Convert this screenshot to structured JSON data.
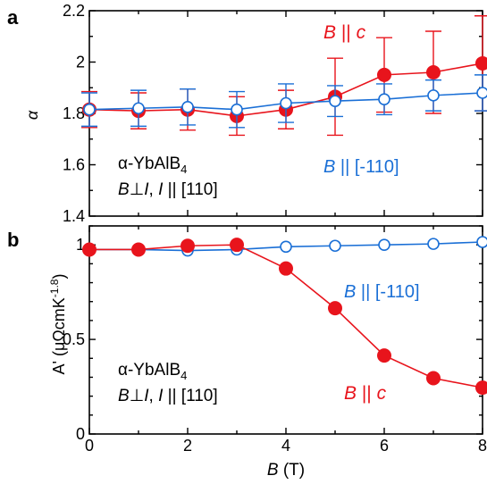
{
  "chart_data": [
    {
      "panel": "a",
      "type": "line",
      "ylabel": "α",
      "xlim": [
        0,
        8
      ],
      "ylim": [
        1.4,
        2.2
      ],
      "yticks": [
        "1.4",
        "1.6",
        "1.8",
        "2",
        "2.2"
      ],
      "x": [
        0,
        1,
        2,
        3,
        4,
        5,
        6,
        7,
        8
      ],
      "series": [
        {
          "name": "B || c",
          "label_parts": [
            "B",
            " || ",
            "c"
          ],
          "color": "#e8141c",
          "marker": "filled-circle",
          "values": [
            1.815,
            1.81,
            1.815,
            1.79,
            1.815,
            1.865,
            1.95,
            1.96,
            1.995
          ],
          "errors": [
            0.07,
            0.07,
            0.08,
            0.075,
            0.075,
            0.15,
            0.145,
            0.16,
            0.185
          ]
        },
        {
          "name": "B || [-110]",
          "label_parts": [
            "B",
            " || [-110]"
          ],
          "color": "#1a6fd6",
          "marker": "open-circle",
          "values": [
            1.815,
            1.82,
            1.825,
            1.815,
            1.84,
            1.848,
            1.855,
            1.87,
            1.88
          ],
          "errors": [
            0.065,
            0.07,
            0.07,
            0.07,
            0.075,
            0.06,
            0.06,
            0.06,
            0.07
          ]
        }
      ],
      "annotation": {
        "line1_main": "α-YbAlB",
        "line1_sub": "4",
        "line2_parts": [
          "B",
          "⊥",
          "I",
          ", ",
          "I",
          " || [110]"
        ]
      }
    },
    {
      "panel": "b",
      "type": "line",
      "ylabel_main": "A' (μΩcmK",
      "ylabel_sup": "-1.8",
      "ylabel_end": ")",
      "xlabel_parts": [
        "B",
        " (T)"
      ],
      "xlim": [
        0,
        8
      ],
      "ylim": [
        0,
        1.1
      ],
      "xticks": [
        "0",
        "2",
        "4",
        "6",
        "8"
      ],
      "yticks": [
        "0",
        "0.5",
        "1"
      ],
      "x": [
        0,
        1,
        2,
        3,
        4,
        5,
        6,
        7,
        8
      ],
      "series": [
        {
          "name": "B || [-110]",
          "label_parts": [
            "B",
            " || [-110]"
          ],
          "color": "#1a6fd6",
          "marker": "open-circle",
          "values": [
            0.975,
            0.975,
            0.97,
            0.975,
            0.99,
            0.995,
            1.0,
            1.005,
            1.015
          ]
        },
        {
          "name": "B || c",
          "label_parts": [
            "B",
            " || ",
            "c"
          ],
          "color": "#e8141c",
          "marker": "filled-circle",
          "values": [
            0.975,
            0.975,
            0.995,
            1.0,
            0.875,
            0.665,
            0.415,
            0.295,
            0.245
          ]
        }
      ],
      "annotation": {
        "line1_main": "α-YbAlB",
        "line1_sub": "4",
        "line2_parts": [
          "B",
          "⊥",
          "I",
          ", ",
          "I",
          " || [110]"
        ]
      }
    }
  ]
}
